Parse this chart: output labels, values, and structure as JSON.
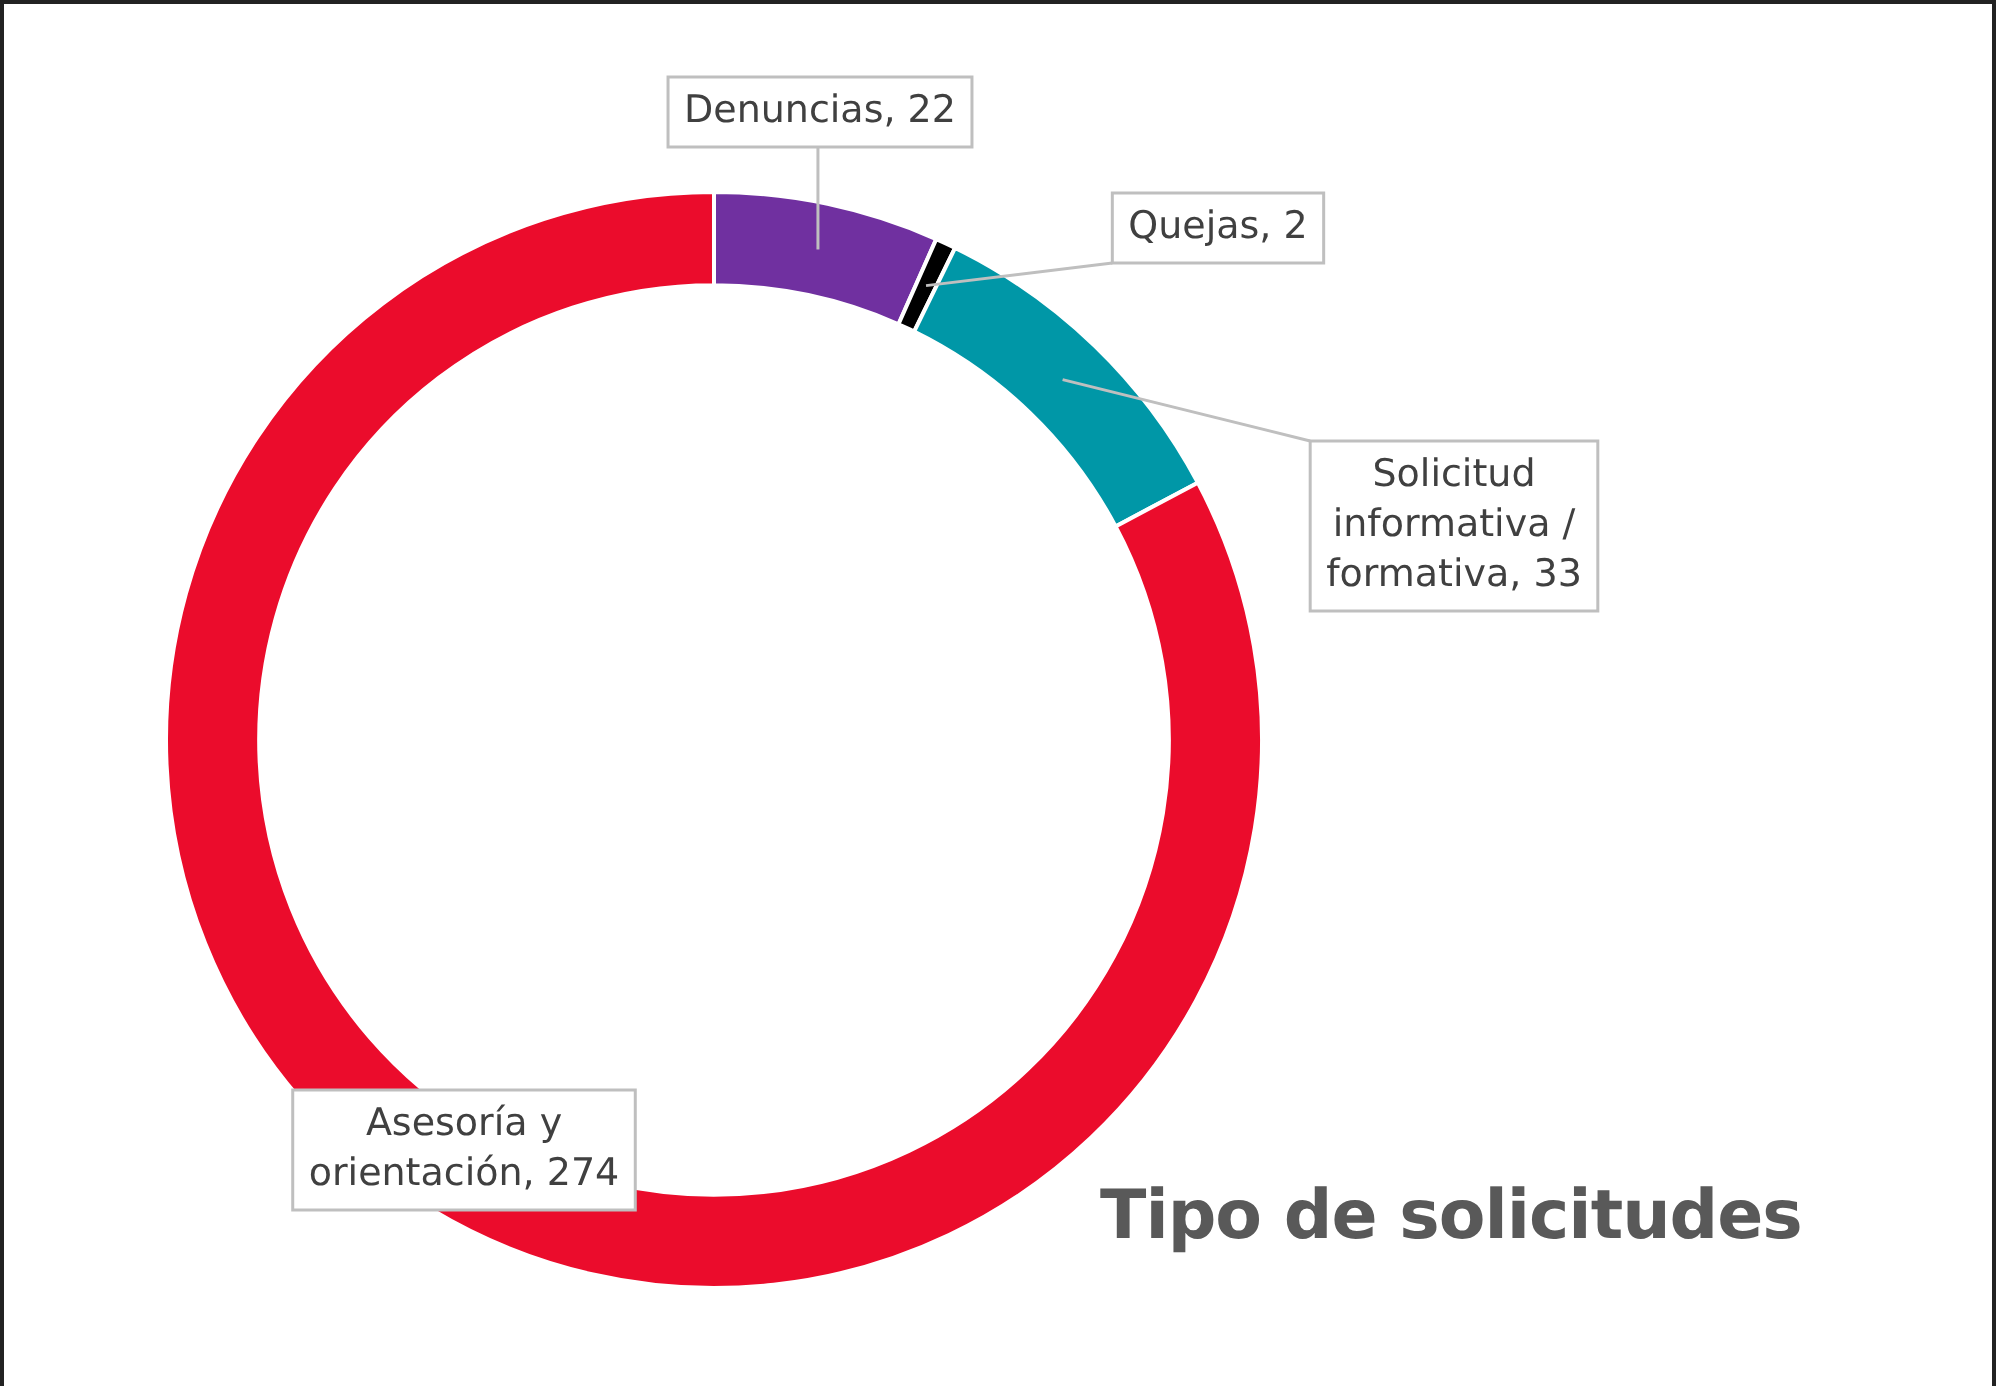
{
  "chart_data": {
    "type": "donut",
    "title": "Tipo de solicitudes",
    "categories": [
      "Denuncias, 22",
      "Quejas, 2",
      "Solicitud informativa / formativa, 33",
      "Asesoría y orientación, 274"
    ],
    "values": [
      22,
      2,
      33,
      274
    ],
    "colors": [
      "#7030a0",
      "#000000",
      "#0097a7",
      "#eb0c2c"
    ],
    "legend": false
  }
}
